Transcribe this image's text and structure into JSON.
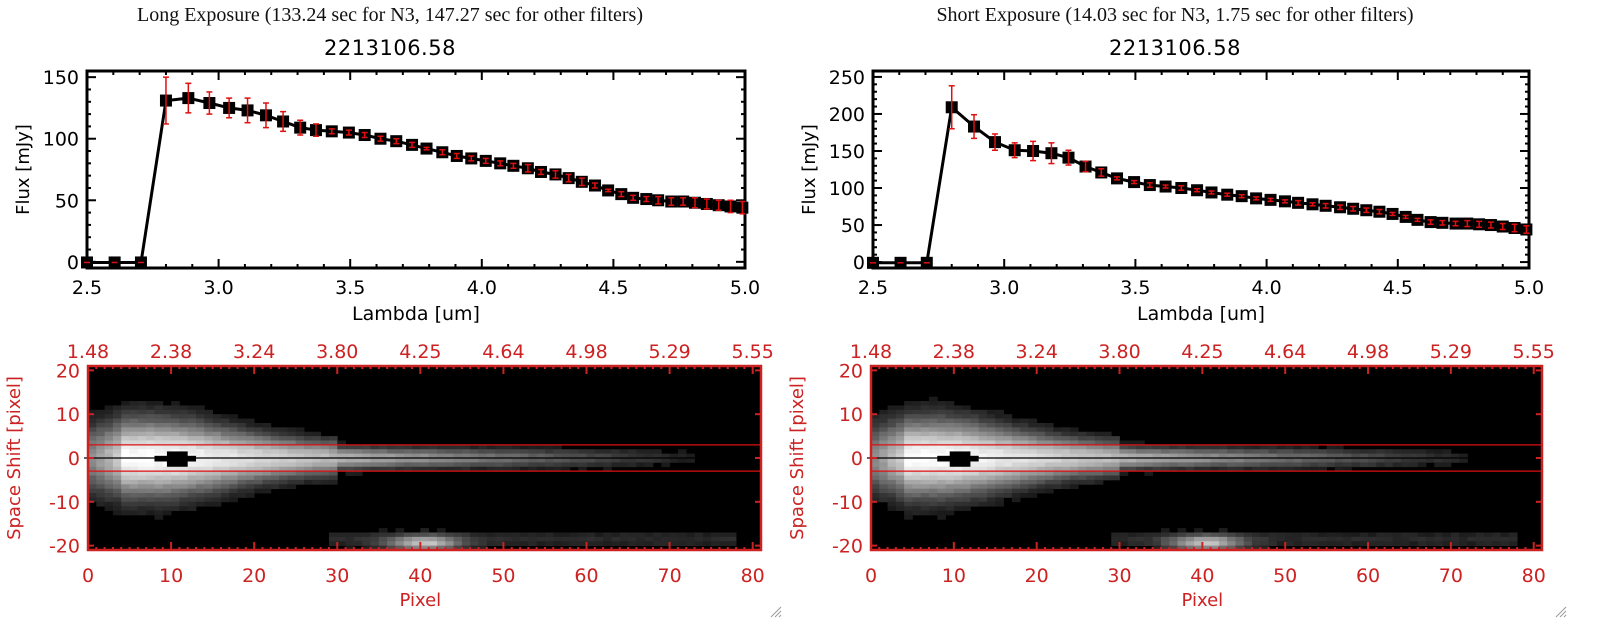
{
  "panels": [
    {
      "title": "Long Exposure (133.24 sec for N3, 147.27 sec for other filters)",
      "source_id": "2213106.58"
    },
    {
      "title": "Short Exposure (14.03 sec for N3, 1.75 sec for other filters)",
      "source_id": "2213106.58"
    }
  ],
  "colors": {
    "line": "#000000",
    "marker": "#000000",
    "errorbar": "#e01010",
    "image_axes": "#cc2222",
    "aperture_lines": "#dd1111"
  },
  "chart_data": [
    {
      "type": "line",
      "title": "2213106.58",
      "xlabel": "Lambda [um]",
      "ylabel": "Flux [mJy]",
      "xlim": [
        2.5,
        5.0
      ],
      "ylim": [
        -5,
        155
      ],
      "xticks": [
        "2.5",
        "3.0",
        "3.5",
        "4.0",
        "4.5",
        "5.0"
      ],
      "yticks": [
        "0",
        "50",
        "100",
        "150"
      ],
      "ytick_values": [
        0,
        50,
        100,
        150
      ],
      "grid": false,
      "x": [
        2.5,
        2.605,
        2.705,
        2.8,
        2.885,
        2.965,
        3.04,
        3.11,
        3.18,
        3.245,
        3.31,
        3.37,
        3.43,
        3.495,
        3.555,
        3.615,
        3.675,
        3.735,
        3.79,
        3.85,
        3.905,
        3.96,
        4.015,
        4.07,
        4.12,
        4.175,
        4.225,
        4.28,
        4.33,
        4.38,
        4.43,
        4.48,
        4.53,
        4.575,
        4.625,
        4.67,
        4.72,
        4.765,
        4.81,
        4.855,
        4.9,
        4.945,
        4.99
      ],
      "y": [
        -0.5,
        -0.5,
        -0.5,
        131,
        133,
        129,
        125,
        123,
        119,
        114,
        109,
        107,
        106,
        105,
        103,
        100,
        98,
        95,
        92,
        89,
        86,
        84,
        82,
        80,
        78,
        76,
        73,
        71,
        68,
        65,
        62,
        58,
        55,
        52,
        51,
        50,
        49,
        49,
        48,
        47,
        46,
        45,
        44
      ],
      "yerr": [
        0,
        0,
        0,
        19,
        12,
        9,
        8,
        10,
        10,
        8,
        6,
        5,
        2,
        2,
        2,
        2,
        2,
        2,
        1,
        2,
        2,
        2,
        2,
        2,
        2,
        3,
        2,
        3,
        3,
        3,
        2,
        1,
        2,
        2,
        2,
        3,
        3,
        3,
        4,
        4,
        4,
        5,
        5
      ]
    },
    {
      "type": "line",
      "title": "2213106.58",
      "xlabel": "Lambda [um]",
      "ylabel": "Flux [mJy]",
      "xlim": [
        2.5,
        5.0
      ],
      "ylim": [
        -8,
        258
      ],
      "xticks": [
        "2.5",
        "3.0",
        "3.5",
        "4.0",
        "4.5",
        "5.0"
      ],
      "yticks": [
        "0",
        "50",
        "100",
        "150",
        "200",
        "250"
      ],
      "ytick_values": [
        0,
        50,
        100,
        150,
        200,
        250
      ],
      "grid": false,
      "x": [
        2.5,
        2.605,
        2.705,
        2.8,
        2.885,
        2.965,
        3.04,
        3.11,
        3.18,
        3.245,
        3.31,
        3.37,
        3.43,
        3.495,
        3.555,
        3.615,
        3.675,
        3.735,
        3.79,
        3.85,
        3.905,
        3.96,
        4.015,
        4.07,
        4.12,
        4.175,
        4.225,
        4.28,
        4.33,
        4.38,
        4.43,
        4.48,
        4.53,
        4.575,
        4.625,
        4.67,
        4.72,
        4.765,
        4.81,
        4.855,
        4.9,
        4.945,
        4.99
      ],
      "y": [
        -1,
        -1,
        -1,
        209,
        183,
        162,
        151,
        150,
        147,
        141,
        129,
        121,
        113,
        108,
        104,
        102,
        100,
        97,
        94,
        91,
        89,
        86,
        84,
        82,
        80,
        78,
        76,
        74,
        72,
        70,
        68,
        65,
        61,
        57,
        54,
        53,
        52,
        52,
        51,
        50,
        48,
        46,
        44
      ],
      "yerr": [
        0,
        0,
        0,
        29,
        16,
        11,
        10,
        13,
        14,
        10,
        7,
        5,
        2,
        2,
        3,
        2,
        3,
        2,
        2,
        2,
        2,
        2,
        2,
        2,
        3,
        2,
        3,
        3,
        3,
        3,
        3,
        2,
        2,
        2,
        3,
        3,
        3,
        4,
        4,
        4,
        4,
        5,
        5
      ]
    },
    {
      "type": "heatmap",
      "xlabel": "Pixel",
      "ylabel": "Space Shift [pixel]",
      "xlim": [
        0,
        81
      ],
      "ylim": [
        -21,
        21
      ],
      "xticks": [
        "0",
        "10",
        "20",
        "30",
        "40",
        "50",
        "60",
        "70",
        "80"
      ],
      "yticks": [
        "20",
        "10",
        "0",
        "-10",
        "-20"
      ],
      "top_axis_label": "",
      "top_xticks": [
        "1.48",
        "2.38",
        "3.24",
        "3.80",
        "4.25",
        "4.64",
        "4.98",
        "5.29",
        "5.55"
      ],
      "aperture": [
        -3,
        3
      ],
      "centerline": 0
    },
    {
      "type": "heatmap",
      "xlabel": "Pixel",
      "ylabel": "Space Shift [pixel]",
      "xlim": [
        0,
        81
      ],
      "ylim": [
        -21,
        21
      ],
      "xticks": [
        "0",
        "10",
        "20",
        "30",
        "40",
        "50",
        "60",
        "70",
        "80"
      ],
      "yticks": [
        "20",
        "10",
        "0",
        "-10",
        "-20"
      ],
      "top_xticks": [
        "1.48",
        "2.38",
        "3.24",
        "3.80",
        "4.25",
        "4.64",
        "4.98",
        "5.29",
        "5.55"
      ],
      "aperture": [
        -3,
        3
      ],
      "centerline": 0
    }
  ]
}
